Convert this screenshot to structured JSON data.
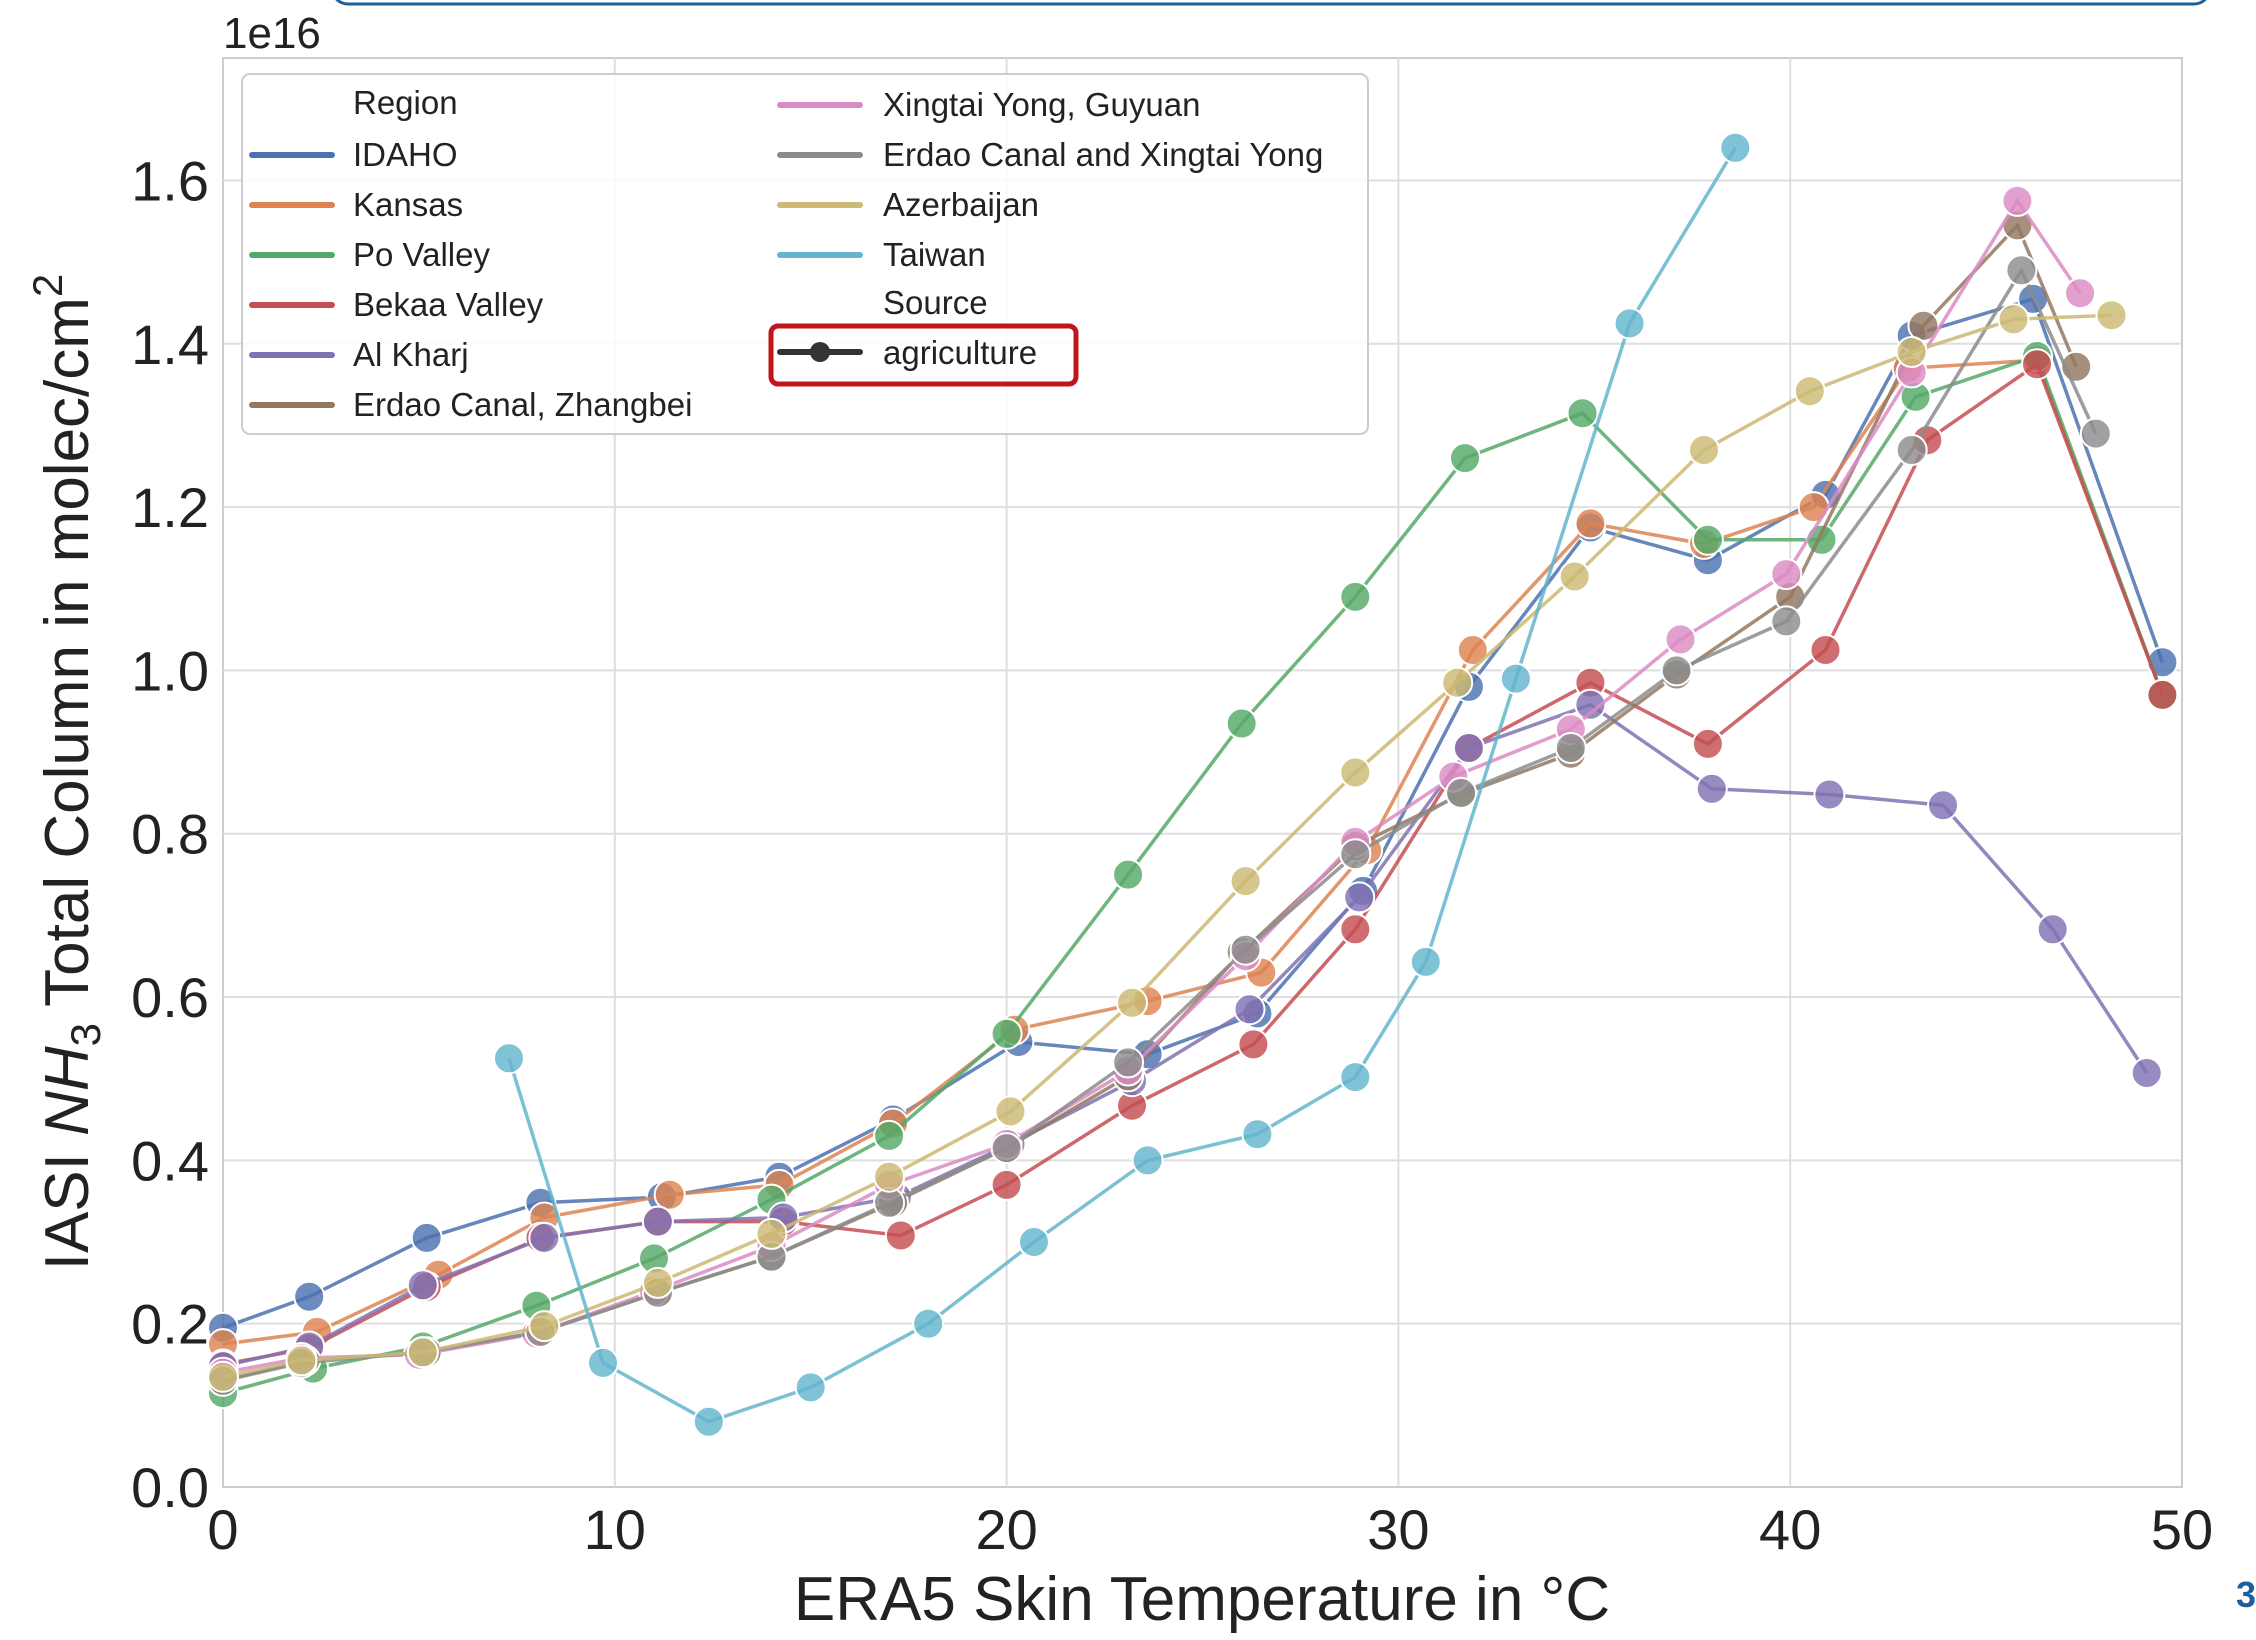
{
  "page_number": "3",
  "chart_data": {
    "type": "line",
    "title": "",
    "xlabel": "ERA5 Skin Temperature in °C",
    "ylabel_parts": [
      "IASI ",
      "NH",
      "3",
      " Total Column in molec/cm",
      "2"
    ],
    "y_scale_label": "1e16",
    "xlim": [
      0,
      50
    ],
    "ylim": [
      0,
      1.75
    ],
    "x_ticks": [
      0,
      10,
      20,
      30,
      40,
      50
    ],
    "x_tick_labels": [
      "0",
      "10",
      "20",
      "30",
      "40",
      "50"
    ],
    "y_ticks": [
      0,
      0.2,
      0.4,
      0.6,
      0.8,
      1.0,
      1.2,
      1.4,
      1.6
    ],
    "y_tick_labels": [
      "0.0",
      "0.2",
      "0.4",
      "0.6",
      "0.8",
      "1.0",
      "1.2",
      "1.4",
      "1.6"
    ],
    "grid": true,
    "legend_position": "top-left",
    "legend": {
      "region_heading": "Region",
      "source_heading": "Source",
      "source_entry": "agriculture",
      "source_color": "#333333"
    },
    "series": [
      {
        "name": "IDAHO",
        "color": "#4c72b0",
        "x": [
          0,
          2.2,
          5.2,
          8.1,
          11.2,
          14.2,
          17.1,
          20.3,
          23.6,
          26.4,
          29.1,
          31.8,
          34.9,
          37.9,
          40.9,
          43.1,
          46.2,
          49.5
        ],
        "y": [
          0.195,
          0.233,
          0.305,
          0.348,
          0.355,
          0.38,
          0.45,
          0.545,
          0.53,
          0.58,
          0.73,
          0.98,
          1.175,
          1.135,
          1.215,
          1.41,
          1.455,
          1.01
        ]
      },
      {
        "name": "Kansas",
        "color": "#dd8452",
        "x": [
          0,
          2.4,
          5.5,
          8.2,
          11.4,
          14.2,
          17.1,
          20.2,
          23.6,
          26.5,
          29.2,
          31.9,
          34.9,
          37.8,
          40.6,
          43.0,
          46.3,
          49.5
        ],
        "y": [
          0.175,
          0.19,
          0.26,
          0.33,
          0.358,
          0.37,
          0.445,
          0.56,
          0.595,
          0.63,
          0.78,
          1.025,
          1.18,
          1.155,
          1.2,
          1.37,
          1.38,
          0.97
        ]
      },
      {
        "name": "Po Valley",
        "color": "#55a868",
        "x": [
          0,
          2.3,
          5.1,
          8.0,
          11.0,
          14.0,
          17.0,
          20.0,
          23.1,
          26.0,
          28.9,
          31.7,
          34.7,
          37.9,
          40.8,
          43.2,
          46.3,
          49.5
        ],
        "y": [
          0.115,
          0.145,
          0.172,
          0.222,
          0.28,
          0.352,
          0.43,
          0.555,
          0.75,
          0.935,
          1.09,
          1.26,
          1.315,
          1.16,
          1.16,
          1.335,
          1.385,
          0.97
        ]
      },
      {
        "name": "Bekaa Valley",
        "color": "#c44e52",
        "x": [
          0,
          2.2,
          5.2,
          8.1,
          11.1,
          14.3,
          17.3,
          20.0,
          23.2,
          26.3,
          28.9,
          31.8,
          34.9,
          37.9,
          40.9,
          43.5,
          46.3,
          49.5
        ],
        "y": [
          0.15,
          0.17,
          0.245,
          0.305,
          0.325,
          0.325,
          0.308,
          0.37,
          0.467,
          0.542,
          0.683,
          0.905,
          0.985,
          0.91,
          1.025,
          1.282,
          1.375,
          0.97
        ]
      },
      {
        "name": "Al Kharj",
        "color": "#8172b3",
        "x": [
          0,
          2.2,
          5.1,
          8.2,
          11.1,
          14.3,
          17.2,
          20.1,
          23.2,
          26.2,
          29.0,
          31.8,
          34.9,
          38.0,
          41.0,
          43.9,
          46.7,
          49.1
        ],
        "y": [
          0.148,
          0.172,
          0.247,
          0.305,
          0.325,
          0.33,
          0.355,
          0.42,
          0.497,
          0.585,
          0.722,
          0.905,
          0.958,
          0.855,
          0.848,
          0.835,
          0.683,
          0.507
        ]
      },
      {
        "name": "Erdao Canal, Zhangbei",
        "color": "#937860",
        "x": [
          0,
          2.1,
          5.2,
          8.1,
          11.1,
          14.0,
          17.1,
          20.0,
          23.1,
          26.0,
          28.9,
          31.6,
          34.4,
          37.1,
          40.0,
          43.4,
          45.8,
          47.3
        ],
        "y": [
          0.13,
          0.155,
          0.165,
          0.19,
          0.238,
          0.282,
          0.348,
          0.415,
          0.503,
          0.655,
          0.785,
          0.848,
          0.898,
          0.995,
          1.09,
          1.422,
          1.545,
          1.372
        ]
      },
      {
        "name": "Xingtai Yong, Guyuan",
        "color": "#da8bc3",
        "x": [
          0,
          2.0,
          5.0,
          8.0,
          11.0,
          14.0,
          17.0,
          20.0,
          23.1,
          26.1,
          28.9,
          31.4,
          34.4,
          37.2,
          39.9,
          43.1,
          45.8,
          47.4
        ],
        "y": [
          0.14,
          0.158,
          0.162,
          0.188,
          0.24,
          0.295,
          0.37,
          0.42,
          0.51,
          0.65,
          0.79,
          0.87,
          0.928,
          1.038,
          1.118,
          1.365,
          1.575,
          1.462
        ]
      },
      {
        "name": "Erdao Canal and Xingtai Yong",
        "color": "#8c8c8c",
        "x": [
          0,
          2.0,
          5.1,
          8.1,
          11.1,
          14.0,
          17.0,
          20.0,
          23.1,
          26.1,
          28.9,
          31.6,
          34.4,
          37.1,
          39.9,
          43.1,
          45.9,
          47.8
        ],
        "y": [
          0.13,
          0.152,
          0.165,
          0.19,
          0.238,
          0.282,
          0.348,
          0.415,
          0.52,
          0.658,
          0.775,
          0.85,
          0.905,
          1.0,
          1.06,
          1.27,
          1.49,
          1.29
        ]
      },
      {
        "name": "Azerbaijan",
        "color": "#ccb974",
        "x": [
          0,
          2.0,
          5.1,
          8.2,
          11.1,
          14.0,
          17.0,
          20.1,
          23.2,
          26.1,
          28.9,
          31.5,
          34.5,
          37.8,
          40.5,
          43.1,
          45.7,
          48.2
        ],
        "y": [
          0.135,
          0.155,
          0.165,
          0.197,
          0.25,
          0.31,
          0.38,
          0.46,
          0.593,
          0.742,
          0.875,
          0.985,
          1.115,
          1.27,
          1.342,
          1.39,
          1.43,
          1.435
        ]
      },
      {
        "name": "Taiwan",
        "color": "#64b5cd",
        "x": [
          7.3,
          9.7,
          12.4,
          15.0,
          18.0,
          20.7,
          23.6,
          26.4,
          28.9,
          30.7,
          33.0,
          35.9,
          38.6
        ],
        "y": [
          0.525,
          0.152,
          0.08,
          0.122,
          0.2,
          0.3,
          0.4,
          0.432,
          0.502,
          0.643,
          0.99,
          1.425,
          1.64
        ]
      }
    ]
  }
}
